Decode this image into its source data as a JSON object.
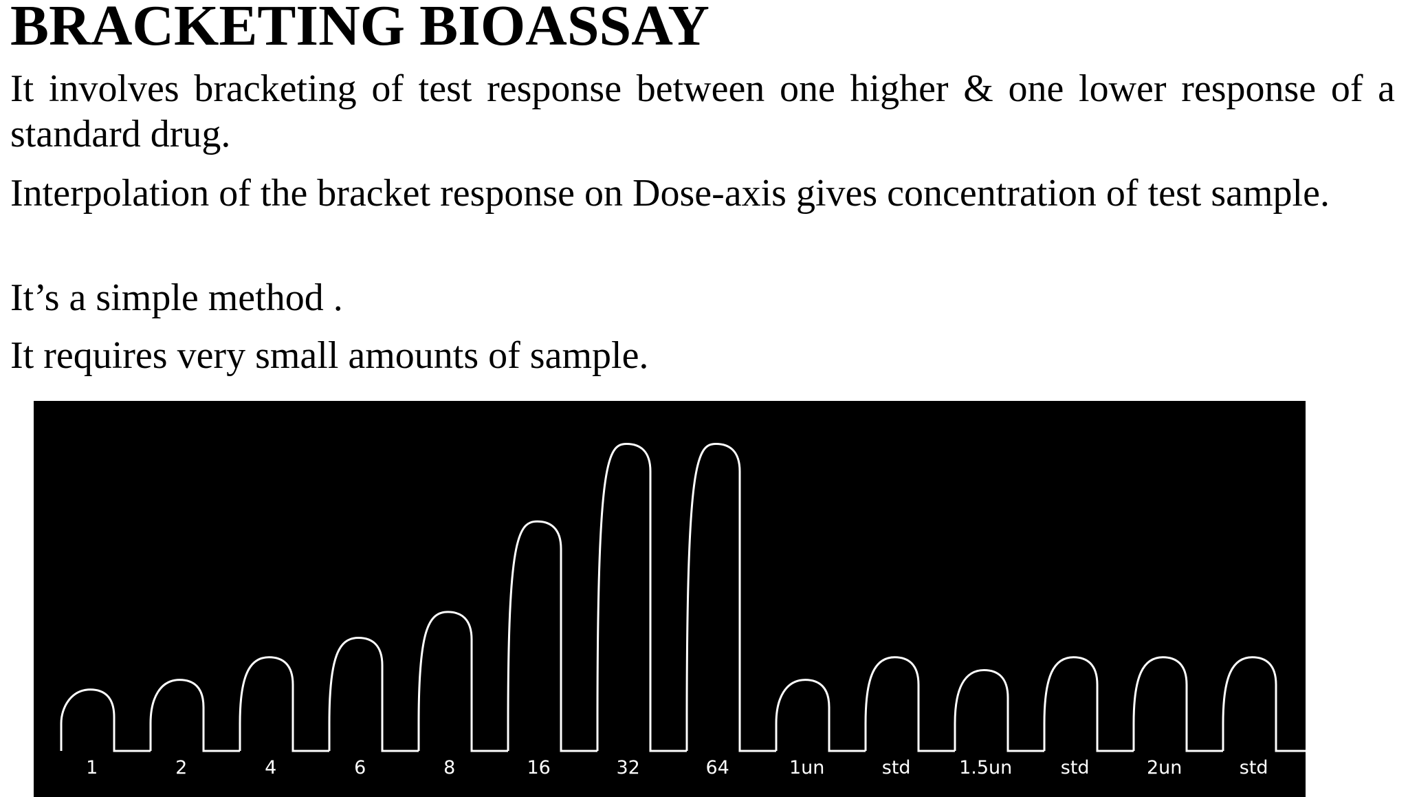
{
  "slide": {
    "title": "BRACKETING BIOASSAY",
    "paragraphs": [
      "It involves bracketing of test response between one higher & one lower response of a standard drug.",
      "Interpolation of the bracket response on Dose-axis gives concentration of test sample.",
      "It’s a simple method .",
      "It requires very small amounts of sample."
    ]
  },
  "figure": {
    "background_color": "#000000",
    "trace_color": "#ffffff",
    "responses": [
      {
        "label": "1",
        "height": 0.19
      },
      {
        "label": "2",
        "height": 0.22
      },
      {
        "label": "4",
        "height": 0.29
      },
      {
        "label": "6",
        "height": 0.35
      },
      {
        "label": "8",
        "height": 0.43
      },
      {
        "label": "16",
        "height": 0.71
      },
      {
        "label": "32",
        "height": 0.95
      },
      {
        "label": "64",
        "height": 0.95
      },
      {
        "label": "1un",
        "height": 0.22
      },
      {
        "label": "std",
        "height": 0.29
      },
      {
        "label": "1.5un",
        "height": 0.25
      },
      {
        "label": "std",
        "height": 0.29
      },
      {
        "label": "2un",
        "height": 0.29
      },
      {
        "label": "std",
        "height": 0.29
      }
    ]
  }
}
